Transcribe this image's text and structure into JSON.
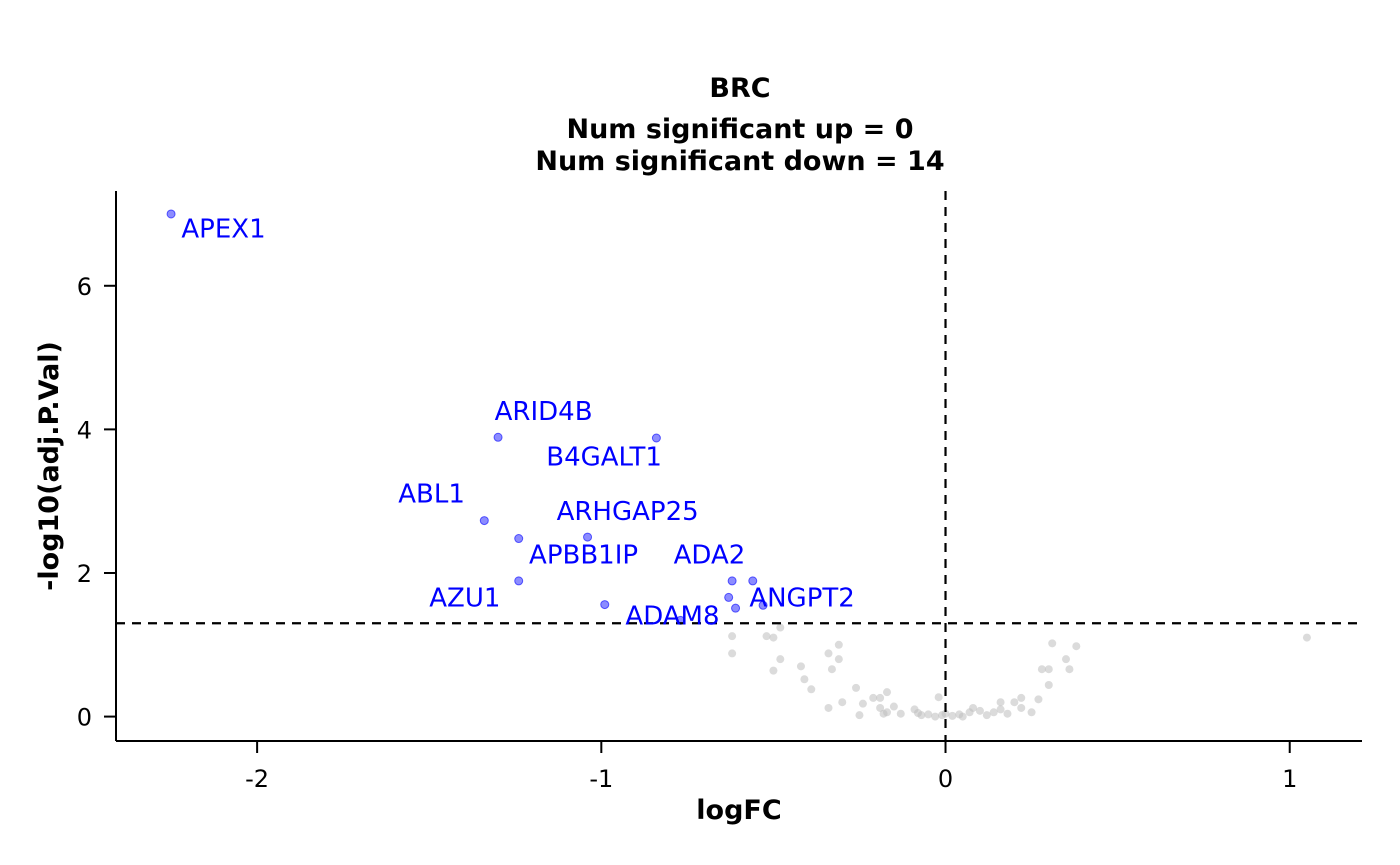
{
  "chart_data": {
    "type": "scatter",
    "title": "BRC",
    "subtitle_lines": [
      "Num significant up = 0",
      "Num significant down = 14"
    ],
    "xlabel": "logFC",
    "ylabel": "-log10(adj.P.Val)",
    "xlim": [
      -2.41,
      1.21
    ],
    "ylim": [
      -0.34,
      7.32
    ],
    "x_ticks": [
      -2,
      -1,
      0,
      1
    ],
    "y_ticks": [
      0,
      2,
      4,
      6
    ],
    "threshold_y": 1.3,
    "threshold_x": 0,
    "colors": {
      "significant": "#0000ff",
      "not_significant": "#bebebe",
      "label": "#0000ff",
      "axis": "#000000"
    },
    "significant_points": [
      {
        "label": "APEX1",
        "x": -2.25,
        "y": 7.0
      },
      {
        "label": "ARID4B",
        "x": -1.3,
        "y": 3.89
      },
      {
        "label": "B4GALT1",
        "x": -0.84,
        "y": 3.88
      },
      {
        "label": "ABL1",
        "x": -1.34,
        "y": 2.73
      },
      {
        "label": "ARHGAP25",
        "x": -1.04,
        "y": 2.5
      },
      {
        "label": "",
        "x": -1.24,
        "y": 2.48
      },
      {
        "label": "APBB1IP",
        "x": -1.24,
        "y": 1.89
      },
      {
        "label": "ADA2",
        "x": -0.62,
        "y": 1.89
      },
      {
        "label": "",
        "x": -0.56,
        "y": 1.89
      },
      {
        "label": "AZU1",
        "x": -0.99,
        "y": 1.56
      },
      {
        "label": "",
        "x": -0.63,
        "y": 1.66
      },
      {
        "label": "ANGPT2",
        "x": -0.61,
        "y": 1.51
      },
      {
        "label": "ADAM8",
        "x": -0.77,
        "y": 1.34
      },
      {
        "label": "",
        "x": -0.53,
        "y": 1.55
      }
    ],
    "label_texts": [
      {
        "text": "APEX1",
        "x": -2.22,
        "y": 6.67
      },
      {
        "text": "ARID4B",
        "x": -1.31,
        "y": 4.13
      },
      {
        "text": "B4GALT1",
        "x": -1.16,
        "y": 3.5
      },
      {
        "text": "ABL1",
        "x": -1.59,
        "y": 2.98
      },
      {
        "text": "ARHGAP25",
        "x": -1.13,
        "y": 2.74
      },
      {
        "text": "APBB1IP",
        "x": -1.21,
        "y": 2.13
      },
      {
        "text": "ADA2",
        "x": -0.79,
        "y": 2.13
      },
      {
        "text": "AZU1",
        "x": -1.5,
        "y": 1.53
      },
      {
        "text": "ANGPT2",
        "x": -0.57,
        "y": 1.53
      },
      {
        "text": "ADAM8",
        "x": -0.93,
        "y": 1.28
      }
    ],
    "nonsignificant_points": [
      {
        "x": -0.62,
        "y": 1.12
      },
      {
        "x": -0.62,
        "y": 0.88
      },
      {
        "x": -0.52,
        "y": 1.12
      },
      {
        "x": -0.5,
        "y": 1.1
      },
      {
        "x": -0.48,
        "y": 1.24
      },
      {
        "x": -0.48,
        "y": 0.8
      },
      {
        "x": -0.5,
        "y": 0.64
      },
      {
        "x": -0.31,
        "y": 1.0
      },
      {
        "x": -0.34,
        "y": 0.88
      },
      {
        "x": -0.31,
        "y": 0.8
      },
      {
        "x": -0.33,
        "y": 0.66
      },
      {
        "x": -0.42,
        "y": 0.7
      },
      {
        "x": -0.41,
        "y": 0.52
      },
      {
        "x": -0.39,
        "y": 0.38
      },
      {
        "x": -0.34,
        "y": 0.12
      },
      {
        "x": -0.3,
        "y": 0.2
      },
      {
        "x": -0.26,
        "y": 0.4
      },
      {
        "x": -0.24,
        "y": 0.18
      },
      {
        "x": -0.25,
        "y": 0.02
      },
      {
        "x": -0.21,
        "y": 0.26
      },
      {
        "x": -0.19,
        "y": 0.26
      },
      {
        "x": -0.17,
        "y": 0.34
      },
      {
        "x": -0.19,
        "y": 0.12
      },
      {
        "x": -0.17,
        "y": 0.06
      },
      {
        "x": -0.15,
        "y": 0.14
      },
      {
        "x": -0.13,
        "y": 0.04
      },
      {
        "x": -0.18,
        "y": 0.04
      },
      {
        "x": -0.09,
        "y": 0.1
      },
      {
        "x": -0.08,
        "y": 0.05
      },
      {
        "x": -0.07,
        "y": 0.02
      },
      {
        "x": -0.05,
        "y": 0.03
      },
      {
        "x": -0.03,
        "y": 0.0
      },
      {
        "x": -0.02,
        "y": 0.27
      },
      {
        "x": -0.01,
        "y": 0.02
      },
      {
        "x": 0.0,
        "y": 0.04
      },
      {
        "x": 0.02,
        "y": 0.01
      },
      {
        "x": 0.04,
        "y": 0.03
      },
      {
        "x": 0.05,
        "y": 0.0
      },
      {
        "x": 0.07,
        "y": 0.06
      },
      {
        "x": 0.08,
        "y": 0.12
      },
      {
        "x": 0.1,
        "y": 0.08
      },
      {
        "x": 0.12,
        "y": 0.02
      },
      {
        "x": 0.14,
        "y": 0.06
      },
      {
        "x": 0.16,
        "y": 0.1
      },
      {
        "x": 0.16,
        "y": 0.2
      },
      {
        "x": 0.18,
        "y": 0.04
      },
      {
        "x": 0.2,
        "y": 0.2
      },
      {
        "x": 0.22,
        "y": 0.26
      },
      {
        "x": 0.22,
        "y": 0.12
      },
      {
        "x": 0.25,
        "y": 0.06
      },
      {
        "x": 0.27,
        "y": 0.24
      },
      {
        "x": 0.28,
        "y": 0.66
      },
      {
        "x": 0.3,
        "y": 0.66
      },
      {
        "x": 0.3,
        "y": 0.44
      },
      {
        "x": 0.31,
        "y": 1.02
      },
      {
        "x": 0.35,
        "y": 0.8
      },
      {
        "x": 0.36,
        "y": 0.66
      },
      {
        "x": 0.38,
        "y": 0.98
      },
      {
        "x": 1.05,
        "y": 1.1
      }
    ]
  }
}
